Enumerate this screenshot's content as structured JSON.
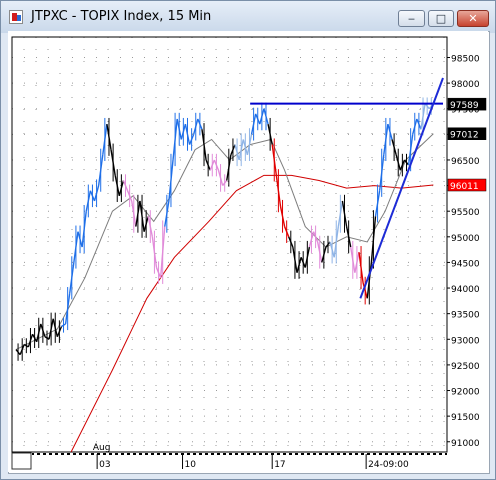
{
  "window": {
    "title": "JTPXC - TOPIX Index, 15 Min",
    "icon": "chart-app-icon",
    "controls": [
      "minimize-icon",
      "maximize-icon",
      "close-icon"
    ]
  },
  "chart_data": {
    "type": "line",
    "y_ticks": [
      "98500",
      "98000",
      "97500",
      "97000",
      "96500",
      "96000",
      "95500",
      "95000",
      "94500",
      "94000",
      "93500",
      "93000",
      "92500",
      "92000",
      "91500",
      "91000"
    ],
    "x_ticks": [
      "03",
      "10",
      "17",
      "24-09:00"
    ],
    "x_month_label": "Aug",
    "price_labels": [
      {
        "text": "97589",
        "value": 97589,
        "color": "#000000"
      },
      {
        "text": "97012",
        "value": 97012,
        "color": "#000000"
      },
      {
        "text": "96011",
        "value": 96011,
        "color": "#ff0000"
      }
    ],
    "ylim": [
      90800,
      98900
    ],
    "grid": true,
    "price_series": [
      {
        "t": 0,
        "y": 92800,
        "c": "black"
      },
      {
        "t": 3,
        "y": 92700,
        "c": "black"
      },
      {
        "t": 6,
        "y": 92900,
        "c": "black"
      },
      {
        "t": 9,
        "y": 92850,
        "c": "black"
      },
      {
        "t": 12,
        "y": 93100,
        "c": "black"
      },
      {
        "t": 15,
        "y": 92950,
        "c": "black"
      },
      {
        "t": 18,
        "y": 93300,
        "c": "black"
      },
      {
        "t": 21,
        "y": 93050,
        "c": "black"
      },
      {
        "t": 24,
        "y": 93000,
        "c": "black"
      },
      {
        "t": 27,
        "y": 93400,
        "c": "black"
      },
      {
        "t": 30,
        "y": 93050,
        "c": "black"
      },
      {
        "t": 33,
        "y": 93250,
        "c": "black"
      },
      {
        "t": 36,
        "y": 93300,
        "c": "blue"
      },
      {
        "t": 39,
        "y": 93900,
        "c": "blue"
      },
      {
        "t": 42,
        "y": 94500,
        "c": "blue"
      },
      {
        "t": 45,
        "y": 95100,
        "c": "blue"
      },
      {
        "t": 48,
        "y": 94800,
        "c": "blue"
      },
      {
        "t": 51,
        "y": 95500,
        "c": "blue"
      },
      {
        "t": 54,
        "y": 95900,
        "c": "blue"
      },
      {
        "t": 57,
        "y": 95700,
        "c": "blue"
      },
      {
        "t": 60,
        "y": 96000,
        "c": "blue"
      },
      {
        "t": 63,
        "y": 96600,
        "c": "blue"
      },
      {
        "t": 66,
        "y": 97200,
        "c": "blue"
      },
      {
        "t": 69,
        "y": 96700,
        "c": "black"
      },
      {
        "t": 72,
        "y": 96200,
        "c": "black"
      },
      {
        "t": 75,
        "y": 95800,
        "c": "black"
      },
      {
        "t": 78,
        "y": 96100,
        "c": "black"
      },
      {
        "t": 81,
        "y": 95900,
        "c": "pink"
      },
      {
        "t": 84,
        "y": 95700,
        "c": "pink"
      },
      {
        "t": 87,
        "y": 95200,
        "c": "pink"
      },
      {
        "t": 90,
        "y": 95700,
        "c": "black"
      },
      {
        "t": 93,
        "y": 95100,
        "c": "black"
      },
      {
        "t": 96,
        "y": 95400,
        "c": "black"
      },
      {
        "t": 99,
        "y": 95000,
        "c": "pink"
      },
      {
        "t": 102,
        "y": 94400,
        "c": "pink"
      },
      {
        "t": 105,
        "y": 94200,
        "c": "pink"
      },
      {
        "t": 108,
        "y": 95200,
        "c": "pink"
      },
      {
        "t": 111,
        "y": 95700,
        "c": "blue"
      },
      {
        "t": 114,
        "y": 96500,
        "c": "blue"
      },
      {
        "t": 117,
        "y": 97300,
        "c": "blue"
      },
      {
        "t": 120,
        "y": 96900,
        "c": "blue"
      },
      {
        "t": 123,
        "y": 97200,
        "c": "blue"
      },
      {
        "t": 126,
        "y": 96800,
        "c": "blue"
      },
      {
        "t": 129,
        "y": 97000,
        "c": "blue"
      },
      {
        "t": 132,
        "y": 97300,
        "c": "blue"
      },
      {
        "t": 135,
        "y": 97100,
        "c": "blue"
      },
      {
        "t": 138,
        "y": 96500,
        "c": "black"
      },
      {
        "t": 141,
        "y": 96300,
        "c": "black"
      },
      {
        "t": 144,
        "y": 96500,
        "c": "pink"
      },
      {
        "t": 147,
        "y": 96300,
        "c": "pink"
      },
      {
        "t": 150,
        "y": 96000,
        "c": "pink"
      },
      {
        "t": 153,
        "y": 96100,
        "c": "pink"
      },
      {
        "t": 156,
        "y": 96600,
        "c": "black"
      },
      {
        "t": 159,
        "y": 96800,
        "c": "black"
      },
      {
        "t": 162,
        "y": 96500,
        "c": "lightblue"
      },
      {
        "t": 165,
        "y": 96900,
        "c": "lightblue"
      },
      {
        "t": 168,
        "y": 96600,
        "c": "lightblue"
      },
      {
        "t": 171,
        "y": 97000,
        "c": "lightblue"
      },
      {
        "t": 174,
        "y": 97400,
        "c": "blue"
      },
      {
        "t": 177,
        "y": 97200,
        "c": "blue"
      },
      {
        "t": 180,
        "y": 97500,
        "c": "blue"
      },
      {
        "t": 183,
        "y": 97200,
        "c": "blue"
      },
      {
        "t": 186,
        "y": 96800,
        "c": "black"
      },
      {
        "t": 189,
        "y": 96200,
        "c": "red"
      },
      {
        "t": 192,
        "y": 95600,
        "c": "red"
      },
      {
        "t": 195,
        "y": 95200,
        "c": "red"
      },
      {
        "t": 198,
        "y": 95000,
        "c": "red"
      },
      {
        "t": 201,
        "y": 94800,
        "c": "black"
      },
      {
        "t": 204,
        "y": 94300,
        "c": "black"
      },
      {
        "t": 207,
        "y": 94600,
        "c": "black"
      },
      {
        "t": 210,
        "y": 94400,
        "c": "black"
      },
      {
        "t": 213,
        "y": 94800,
        "c": "black"
      },
      {
        "t": 216,
        "y": 95100,
        "c": "pink"
      },
      {
        "t": 219,
        "y": 94900,
        "c": "pink"
      },
      {
        "t": 222,
        "y": 94500,
        "c": "pink"
      },
      {
        "t": 225,
        "y": 94800,
        "c": "black"
      },
      {
        "t": 228,
        "y": 94900,
        "c": "black"
      },
      {
        "t": 231,
        "y": 94600,
        "c": "lightblue"
      },
      {
        "t": 234,
        "y": 95200,
        "c": "lightblue"
      },
      {
        "t": 237,
        "y": 95700,
        "c": "lightblue"
      },
      {
        "t": 240,
        "y": 95200,
        "c": "black"
      },
      {
        "t": 243,
        "y": 94800,
        "c": "black"
      },
      {
        "t": 246,
        "y": 94300,
        "c": "pink"
      },
      {
        "t": 249,
        "y": 94700,
        "c": "pink"
      },
      {
        "t": 252,
        "y": 94100,
        "c": "red"
      },
      {
        "t": 255,
        "y": 93800,
        "c": "red"
      },
      {
        "t": 258,
        "y": 94500,
        "c": "black"
      },
      {
        "t": 261,
        "y": 95400,
        "c": "black"
      },
      {
        "t": 264,
        "y": 95900,
        "c": "blue"
      },
      {
        "t": 267,
        "y": 96600,
        "c": "blue"
      },
      {
        "t": 270,
        "y": 97200,
        "c": "blue"
      },
      {
        "t": 273,
        "y": 96900,
        "c": "blue"
      },
      {
        "t": 276,
        "y": 96600,
        "c": "black"
      },
      {
        "t": 279,
        "y": 96300,
        "c": "black"
      },
      {
        "t": 282,
        "y": 96500,
        "c": "black"
      },
      {
        "t": 285,
        "y": 96400,
        "c": "black"
      },
      {
        "t": 288,
        "y": 97000,
        "c": "blue"
      },
      {
        "t": 291,
        "y": 97300,
        "c": "blue"
      },
      {
        "t": 294,
        "y": 97100,
        "c": "blue"
      },
      {
        "t": 297,
        "y": 97600,
        "c": "lightblue"
      },
      {
        "t": 300,
        "y": 97500,
        "c": "lightblue"
      },
      {
        "t": 303,
        "y": 97589,
        "c": "lightblue"
      }
    ],
    "ma_fast": [
      {
        "t": 0,
        "y": 92800
      },
      {
        "t": 30,
        "y": 93200
      },
      {
        "t": 50,
        "y": 94200
      },
      {
        "t": 70,
        "y": 95500
      },
      {
        "t": 85,
        "y": 95800
      },
      {
        "t": 100,
        "y": 95300
      },
      {
        "t": 115,
        "y": 95900
      },
      {
        "t": 130,
        "y": 96700
      },
      {
        "t": 142,
        "y": 96900
      },
      {
        "t": 155,
        "y": 96500
      },
      {
        "t": 170,
        "y": 96800
      },
      {
        "t": 185,
        "y": 96900
      },
      {
        "t": 195,
        "y": 96300
      },
      {
        "t": 210,
        "y": 95200
      },
      {
        "t": 225,
        "y": 94800
      },
      {
        "t": 240,
        "y": 95000
      },
      {
        "t": 255,
        "y": 94900
      },
      {
        "t": 268,
        "y": 95500
      },
      {
        "t": 283,
        "y": 96500
      },
      {
        "t": 303,
        "y": 97012
      }
    ],
    "ma_slow": [
      {
        "t": 40,
        "y": 90800
      },
      {
        "t": 70,
        "y": 92400
      },
      {
        "t": 95,
        "y": 93800
      },
      {
        "t": 115,
        "y": 94600
      },
      {
        "t": 140,
        "y": 95300
      },
      {
        "t": 160,
        "y": 95900
      },
      {
        "t": 180,
        "y": 96200
      },
      {
        "t": 200,
        "y": 96200
      },
      {
        "t": 220,
        "y": 96100
      },
      {
        "t": 240,
        "y": 95950
      },
      {
        "t": 260,
        "y": 96000
      },
      {
        "t": 280,
        "y": 95950
      },
      {
        "t": 303,
        "y": 96011
      }
    ],
    "horizontal_line": {
      "y": 97600,
      "t_start": 170,
      "t_end": 310,
      "color": "#0000cc"
    },
    "trendline": {
      "t1": 250,
      "y1": 93800,
      "t2": 310,
      "y2": 98100,
      "color": "#1d2bd6"
    },
    "colors": {
      "black": "#000000",
      "blue": "#1f6fe8",
      "lightblue": "#8fb4e6",
      "pink": "#e18bd9",
      "red": "#e00000",
      "ma_fast": "#7d7d7d",
      "ma_slow": "#d00000"
    }
  }
}
